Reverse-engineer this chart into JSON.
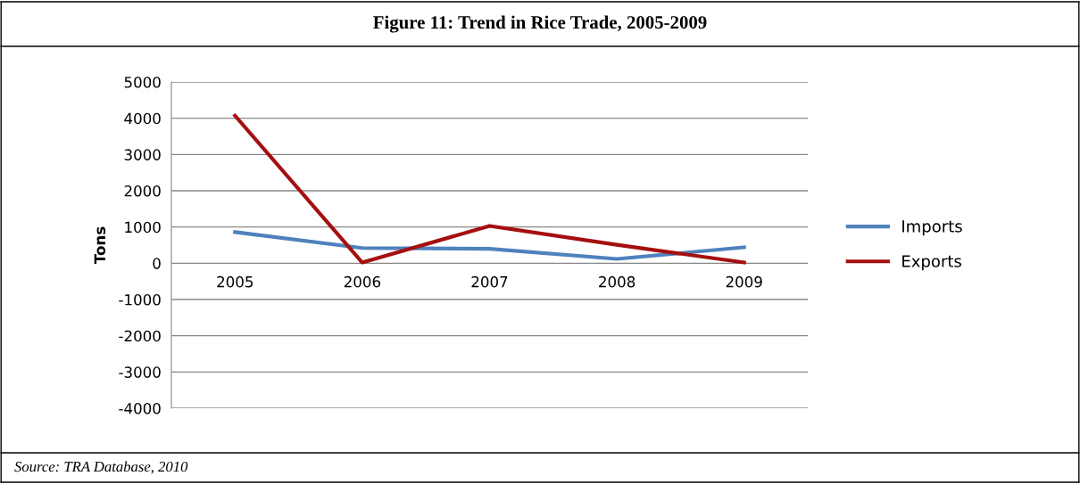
{
  "chart_data": {
    "type": "line",
    "title": "Figure 11: Trend in Rice Trade, 2005-2009",
    "ylabel": "Tons",
    "categories": [
      "2005",
      "2006",
      "2007",
      "2008",
      "2009"
    ],
    "series": [
      {
        "name": "Imports",
        "color": "#4f81bd",
        "values": [
          860,
          420,
          400,
          120,
          440
        ]
      },
      {
        "name": "Exports",
        "color": "#a50f0f",
        "values": [
          4070,
          20,
          1030,
          510,
          20
        ]
      }
    ],
    "ylim": [
      -4000,
      5000
    ],
    "yticks": [
      -4000,
      -3000,
      -2000,
      -1000,
      0,
      1000,
      2000,
      3000,
      4000,
      5000
    ],
    "grid": "y",
    "legend": "right",
    "marker": "none",
    "line_style": "solid",
    "annotations": [
      "Source: TRA Database, 2010"
    ]
  }
}
